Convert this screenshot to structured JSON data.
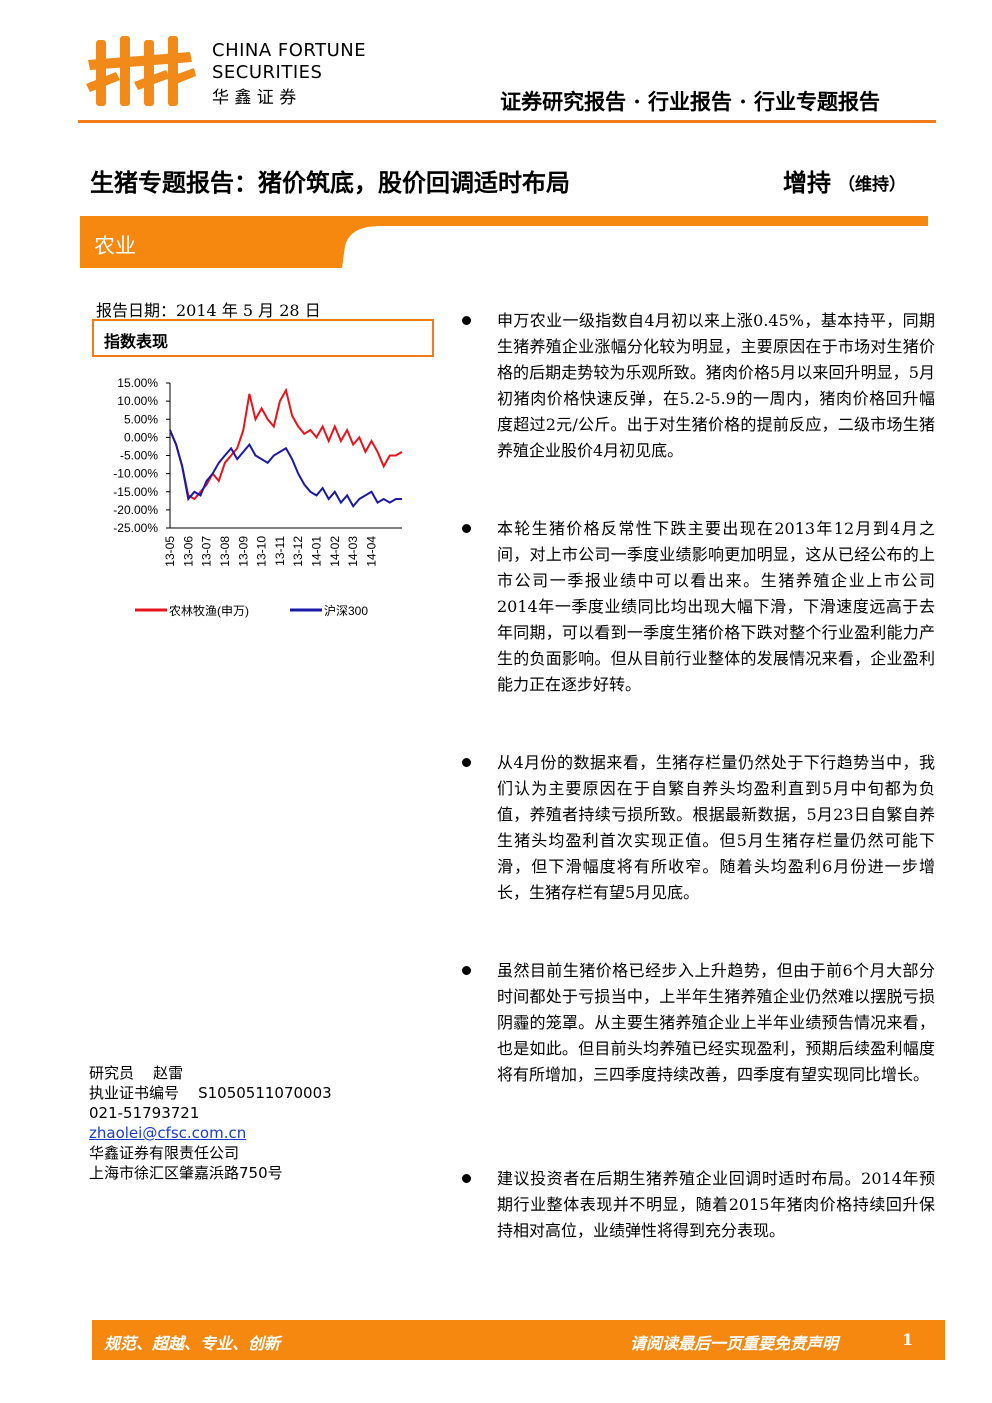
{
  "header": {
    "company_en_1": "CHINA FORTUNE",
    "company_en_2": "SECURITIES",
    "company_cn": "华 鑫 证 券",
    "report_type": "证券研究报告 · 行业报告 · 行业专题报告"
  },
  "title": {
    "main": "生猪专题报告：猪价筑底，股价回调适时布局",
    "rating": "增持",
    "rating_note": "（维持）"
  },
  "sector": "农业",
  "report_date": "报告日期：2014 年 5 月 28 日",
  "section_label": "指数表现",
  "chart_data": {
    "type": "line",
    "categories": [
      "13-05",
      null,
      null,
      "13-06",
      null,
      null,
      "13-07",
      null,
      null,
      "13-08",
      null,
      null,
      "13-09",
      null,
      null,
      "13-10",
      null,
      null,
      "13-11",
      null,
      null,
      "13-12",
      null,
      null,
      "14-01",
      null,
      null,
      "14-02",
      null,
      null,
      "14-03",
      null,
      null,
      "14-04",
      null,
      null,
      null,
      null,
      null
    ],
    "series": [
      {
        "name": "农林牧渔(申万)",
        "color": "#e8141b",
        "values": [
          2,
          -2,
          -8,
          -16,
          -17,
          -15,
          -13,
          -10,
          -12,
          -7,
          -5,
          -3,
          2,
          12,
          5,
          8,
          5,
          3,
          10,
          13,
          6,
          3,
          1,
          2,
          0,
          3,
          -1,
          3,
          -1,
          2,
          -2,
          0,
          -4,
          -1,
          -4,
          -8,
          -5,
          -5,
          -4
        ]
      },
      {
        "name": "沪深300",
        "color": "#1a1aa6",
        "values": [
          2,
          -2,
          -8,
          -17,
          -15,
          -16,
          -12,
          -10,
          -7,
          -5,
          -3,
          -6,
          -4,
          -2,
          -5,
          -6,
          -7,
          -5,
          -4,
          -3,
          -6,
          -10,
          -13,
          -15,
          -16,
          -14,
          -17,
          -15,
          -18,
          -16,
          -19,
          -17,
          -16,
          -15,
          -18,
          -17,
          -18,
          -17,
          -17
        ]
      }
    ],
    "ylim": [
      -25,
      15
    ],
    "yticks": [
      {
        "value": 15,
        "label": "15.00%"
      },
      {
        "value": 10,
        "label": "10.00%"
      },
      {
        "value": 5,
        "label": "5.00%"
      },
      {
        "value": 0,
        "label": "0.00%"
      },
      {
        "value": -5,
        "label": "-5.00%"
      },
      {
        "value": -10,
        "label": "-10.00%"
      },
      {
        "value": -15,
        "label": "-15.00%"
      },
      {
        "value": -20,
        "label": "-20.00%"
      },
      {
        "value": -25,
        "label": "-25.00%"
      }
    ],
    "legend": "bottom"
  },
  "contact": {
    "researcher_label": "研究员",
    "researcher": "赵雷",
    "license_label": "执业证书编号",
    "license": "S1050511070003",
    "phone": "021-51793721",
    "email": "zhaolei@cfsc.com.cn",
    "company": "华鑫证券有限责任公司",
    "address": "上海市徐汇区肇嘉浜路750号"
  },
  "bullets": [
    "申万农业一级指数自4月初以来上涨0.45%，基本持平，同期生猪养殖企业涨幅分化较为明显，主要原因在于市场对生猪价格的后期走势较为乐观所致。猪肉价格5月以来回升明显，5月初猪肉价格快速反弹，在5.2-5.9的一周内，猪肉价格回升幅度超过2元/公斤。出于对生猪价格的提前反应，二级市场生猪养殖企业股价4月初见底。",
    "本轮生猪价格反常性下跌主要出现在2013年12月到4月之间，对上市公司一季度业绩影响更加明显，这从已经公布的上市公司一季报业绩中可以看出来。生猪养殖企业上市公司2014年一季度业绩同比均出现大幅下滑，下滑速度远高于去年同期，可以看到一季度生猪价格下跌对整个行业盈利能力产生的负面影响。但从目前行业整体的发展情况来看，企业盈利能力正在逐步好转。",
    "从4月份的数据来看，生猪存栏量仍然处于下行趋势当中，我们认为主要原因在于自繁自养头均盈利直到5月中旬都为负值，养殖者持续亏损所致。根据最新数据，5月23日自繁自养生猪头均盈利首次实现正值。但5月生猪存栏量仍然可能下滑，但下滑幅度将有所收窄。随着头均盈利6月份进一步增长，生猪存栏有望5月见底。",
    "虽然目前生猪价格已经步入上升趋势，但由于前6个月大部分时间都处于亏损当中，上半年生猪养殖企业仍然难以摆脱亏损阴霾的笼罩。从主要生猪养殖企业上半年业绩预告情况来看，也是如此。但目前头均养殖已经实现盈利，预期后续盈利幅度将有所增加，三四季度持续改善，四季度有望实现同比增长。",
    "建议投资者在后期生猪养殖企业回调时适时布局。2014年预期行业整体表现并不明显，随着2015年猪肉价格持续回升保持相对高位，业绩弹性将得到充分表现。"
  ],
  "footer": {
    "motto": "规范、超越、专业、创新",
    "disclaimer": "请阅读最后一页重要免责声明",
    "page": "1"
  }
}
